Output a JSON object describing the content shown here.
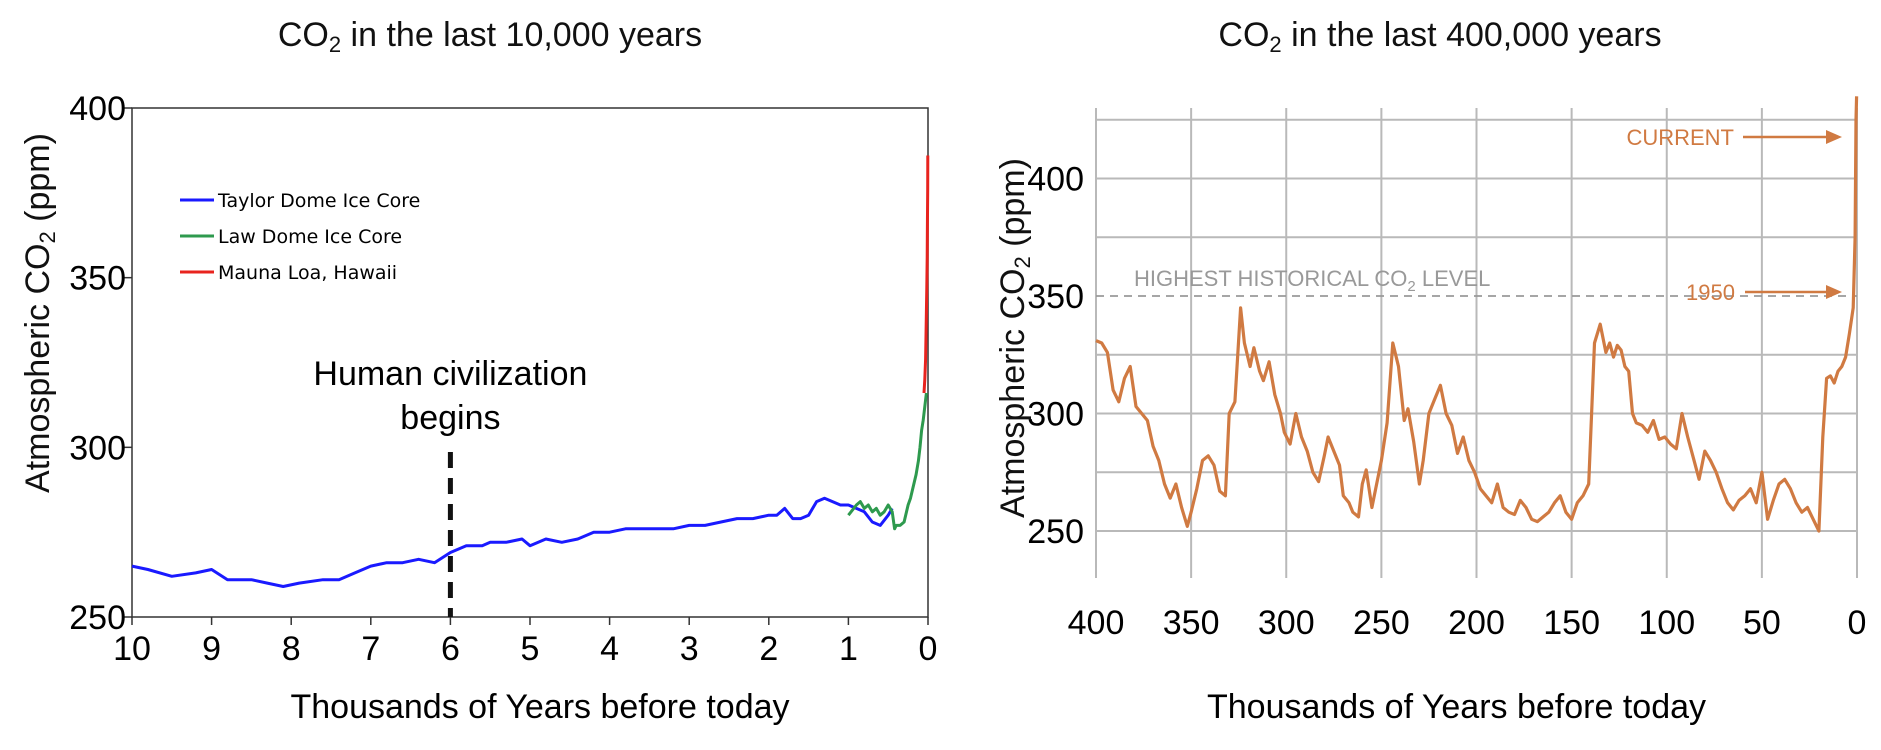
{
  "chart_data": [
    {
      "type": "line",
      "title": {
        "pre": "CO",
        "sub": "2",
        "post": " in the last 10,000 years"
      },
      "xlabel": "Thousands of Years before today",
      "ylabel": {
        "pre": "Atmospheric CO",
        "sub": "2",
        "post": " (ppm)"
      },
      "xlim": [
        10,
        0
      ],
      "ylim": [
        250,
        400
      ],
      "xticks": [
        "10",
        "9",
        "8",
        "7",
        "6",
        "5",
        "4",
        "3",
        "2",
        "1",
        "0"
      ],
      "yticks": [
        "250",
        "300",
        "350",
        "400"
      ],
      "legend_position": "top-left",
      "grid": false,
      "series": [
        {
          "name": "Taylor Dome Ice Core",
          "color": "#1a1aff",
          "x": [
            10,
            9.8,
            9.5,
            9.2,
            9.0,
            8.8,
            8.5,
            8.3,
            8.1,
            7.9,
            7.6,
            7.4,
            7.2,
            7.0,
            6.8,
            6.6,
            6.4,
            6.2,
            6.0,
            5.8,
            5.6,
            5.5,
            5.3,
            5.1,
            5.0,
            4.8,
            4.6,
            4.4,
            4.2,
            4.0,
            3.8,
            3.6,
            3.4,
            3.2,
            3.0,
            2.8,
            2.6,
            2.4,
            2.2,
            2.0,
            1.9,
            1.8,
            1.7,
            1.6,
            1.5,
            1.4,
            1.3,
            1.2,
            1.1,
            1.0,
            0.9,
            0.8,
            0.7,
            0.6,
            0.5,
            0.45
          ],
          "y": [
            265,
            264,
            262,
            263,
            264,
            261,
            261,
            260,
            259,
            260,
            261,
            261,
            263,
            265,
            266,
            266,
            267,
            266,
            269,
            271,
            271,
            272,
            272,
            273,
            271,
            273,
            272,
            273,
            275,
            275,
            276,
            276,
            276,
            276,
            277,
            277,
            278,
            279,
            279,
            280,
            280,
            282,
            279,
            279,
            280,
            284,
            285,
            284,
            283,
            283,
            282,
            281,
            278,
            277,
            280,
            282
          ]
        },
        {
          "name": "Law Dome Ice Core",
          "color": "#2e9a4e",
          "x": [
            1.0,
            0.9,
            0.85,
            0.8,
            0.75,
            0.7,
            0.65,
            0.6,
            0.55,
            0.5,
            0.45,
            0.42,
            0.4,
            0.35,
            0.3,
            0.25,
            0.22,
            0.2,
            0.15,
            0.12,
            0.1,
            0.08,
            0.06,
            0.04,
            0.02
          ],
          "y": [
            280,
            283,
            284,
            282,
            283,
            281,
            282,
            280,
            281,
            283,
            281,
            276,
            277,
            277,
            278,
            283,
            285,
            287,
            292,
            296,
            300,
            305,
            308,
            312,
            316
          ]
        },
        {
          "name": "Mauna Loa, Hawaii",
          "color": "#e8231e",
          "x": [
            0.05,
            0.04,
            0.03,
            0.025,
            0.02,
            0.015,
            0.01,
            0.007,
            0.004,
            0.002
          ],
          "y": [
            316,
            320,
            326,
            333,
            340,
            347,
            356,
            365,
            376,
            386
          ]
        }
      ],
      "annotations": [
        {
          "text_lines": [
            "Human civilization",
            "begins"
          ],
          "x": 6
        }
      ]
    },
    {
      "type": "line",
      "title": {
        "pre": "CO",
        "sub": "2",
        "post": " in the last 400,000 years"
      },
      "xlabel": "Thousands of Years before today",
      "ylabel": {
        "pre": "Atmospheric CO",
        "sub": "2",
        "post": " (ppm)"
      },
      "xlim": [
        400,
        0
      ],
      "ylim": [
        230,
        430
      ],
      "xticks": [
        "400",
        "350",
        "300",
        "250",
        "200",
        "150",
        "100",
        "50",
        "0"
      ],
      "yticks": [
        "250",
        "300",
        "350",
        "400"
      ],
      "grid": true,
      "color": "#d07a42",
      "reference_line": {
        "y": 350,
        "label": {
          "pre": "HIGHEST HISTORICAL CO",
          "sub": "2",
          "post": " LEVEL"
        },
        "color": "#999999"
      },
      "annotations": [
        {
          "text": "CURRENT",
          "x": 2,
          "y": 422
        },
        {
          "text": "1950",
          "x": 3,
          "y": 348
        }
      ],
      "series": [
        {
          "x": [
            400,
            397,
            394,
            391,
            388,
            385,
            382,
            379,
            376,
            373,
            370,
            367,
            364,
            361,
            358,
            355,
            352,
            350,
            347,
            344,
            341,
            338,
            335,
            332,
            330,
            327,
            324,
            322,
            319,
            317,
            314,
            312,
            309,
            306,
            303,
            301,
            298,
            295,
            292,
            289,
            286,
            283,
            280,
            278,
            275,
            272,
            270,
            267,
            265,
            262,
            260,
            258,
            255,
            253,
            250,
            247,
            244,
            241,
            238,
            236,
            233,
            230,
            228,
            225,
            222,
            219,
            216,
            213,
            210,
            207,
            204,
            201,
            198,
            195,
            192,
            189,
            186,
            183,
            180,
            177,
            174,
            171,
            168,
            165,
            162,
            159,
            156,
            153,
            150,
            147,
            144,
            141,
            138,
            135,
            132,
            130,
            128,
            126,
            124,
            122,
            120,
            118,
            116,
            113,
            110,
            107,
            104,
            101,
            98,
            95,
            92,
            89,
            86,
            83,
            80,
            77,
            74,
            71,
            68,
            65,
            62,
            59,
            56,
            53,
            50,
            47,
            44,
            41,
            38,
            35,
            32,
            29,
            26,
            23,
            20,
            18,
            16,
            14,
            12,
            10,
            8,
            6,
            4,
            2,
            1,
            0.5,
            0.2
          ],
          "y": [
            331,
            330,
            326,
            310,
            305,
            315,
            320,
            303,
            300,
            297,
            286,
            280,
            270,
            264,
            270,
            260,
            252,
            258,
            268,
            280,
            282,
            278,
            267,
            265,
            300,
            305,
            345,
            330,
            320,
            328,
            318,
            314,
            322,
            308,
            300,
            292,
            287,
            300,
            290,
            284,
            275,
            271,
            282,
            290,
            284,
            278,
            265,
            262,
            258,
            256,
            270,
            276,
            260,
            268,
            280,
            296,
            330,
            320,
            297,
            302,
            288,
            270,
            280,
            300,
            306,
            312,
            300,
            295,
            283,
            290,
            280,
            275,
            268,
            265,
            262,
            270,
            260,
            258,
            257,
            263,
            260,
            255,
            254,
            256,
            258,
            262,
            265,
            258,
            255,
            262,
            265,
            270,
            330,
            338,
            326,
            330,
            324,
            329,
            327,
            320,
            318,
            300,
            296,
            295,
            292,
            297,
            289,
            290,
            287,
            285,
            300,
            290,
            281,
            272,
            284,
            280,
            275,
            268,
            262,
            259,
            263,
            265,
            268,
            262,
            275,
            255,
            263,
            270,
            272,
            268,
            262,
            258,
            260,
            255,
            250,
            290,
            315,
            316,
            313,
            318,
            320,
            324,
            334,
            345,
            375,
            425,
            435
          ]
        }
      ]
    }
  ]
}
